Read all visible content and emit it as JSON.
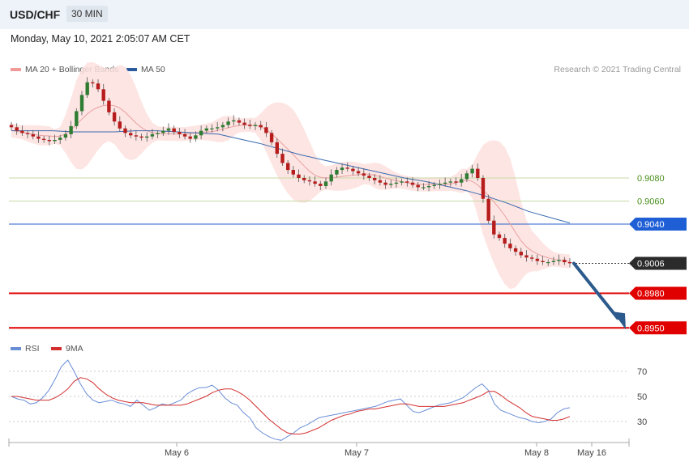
{
  "header": {
    "pair": "USD/CHF",
    "timeframe": "30 MIN"
  },
  "date": "Monday, May 10, 2021 2:05:07 AM CET",
  "legend": {
    "ma20": "MA 20 + Bollinger Bands",
    "ma50": "MA 50",
    "rsi": "RSI",
    "rsi_ma": "9MA"
  },
  "credit": "Research © 2021 Trading Central",
  "colors": {
    "up": "#2e7d32",
    "down": "#b71c1c",
    "band": "#fde0de",
    "ma20": "#e8a0a0",
    "ma50": "#3a6ab0",
    "rsi": "#6a8ed6",
    "rsi_ma": "#d32f2f",
    "level_green": "#c9d9a6",
    "level_blue": "#2a62c8",
    "level_red": "#e00000",
    "current": "#333333"
  },
  "chart_data": [
    {
      "type": "candlestick",
      "title": "USD/CHF 30 MIN",
      "x_labels": [
        "May 6",
        "May 7",
        "May 8",
        "May 16"
      ],
      "levels": [
        {
          "value": 0.908,
          "label": "0.9080",
          "style": "resistance"
        },
        {
          "value": 0.906,
          "label": "0.9060",
          "style": "resistance"
        },
        {
          "value": 0.904,
          "label": "0.9040",
          "style": "pivot"
        },
        {
          "value": 0.9006,
          "label": "0.9006",
          "style": "current"
        },
        {
          "value": 0.898,
          "label": "0.8980",
          "style": "support"
        },
        {
          "value": 0.895,
          "label": "0.8950",
          "style": "support"
        }
      ],
      "projection": {
        "from": 0.9006,
        "to": 0.895,
        "direction": "down"
      },
      "close_approx": [
        0.9124,
        0.9121,
        0.9119,
        0.9118,
        0.9116,
        0.9114,
        0.9113,
        0.9112,
        0.9113,
        0.9115,
        0.9118,
        0.9125,
        0.9138,
        0.9152,
        0.9163,
        0.9162,
        0.9157,
        0.9147,
        0.9137,
        0.9129,
        0.9123,
        0.9119,
        0.9117,
        0.9116,
        0.9115,
        0.9116,
        0.9118,
        0.9119,
        0.9121,
        0.9123,
        0.912,
        0.9118,
        0.9116,
        0.9114,
        0.9117,
        0.9121,
        0.9123,
        0.9123,
        0.9124,
        0.9126,
        0.9129,
        0.913,
        0.9128,
        0.9126,
        0.9125,
        0.9126,
        0.9124,
        0.9119,
        0.9111,
        0.9101,
        0.9093,
        0.9087,
        0.9083,
        0.908,
        0.9078,
        0.9077,
        0.9075,
        0.9073,
        0.9077,
        0.9083,
        0.9087,
        0.9089,
        0.9088,
        0.9086,
        0.9084,
        0.9082,
        0.908,
        0.9078,
        0.9076,
        0.9074,
        0.9075,
        0.9076,
        0.9077,
        0.9076,
        0.9074,
        0.9072,
        0.9072,
        0.9073,
        0.9074,
        0.9075,
        0.9076,
        0.9077,
        0.9076,
        0.9079,
        0.9084,
        0.9088,
        0.908,
        0.9062,
        0.9043,
        0.9031,
        0.9028,
        0.9023,
        0.9019,
        0.9016,
        0.9013,
        0.9011,
        0.901,
        0.9008,
        0.9007,
        0.9007,
        0.9008,
        0.9009,
        0.9007,
        0.9006
      ],
      "ma50_approx": [
        0.9121,
        0.9121,
        0.9121,
        0.912,
        0.912,
        0.912,
        0.9121,
        0.9121,
        0.912,
        0.9119,
        0.9118,
        0.9114,
        0.911,
        0.9105,
        0.91,
        0.9096,
        0.9092,
        0.9088,
        0.9084,
        0.908,
        0.9077,
        0.9073,
        0.9069,
        0.9064,
        0.9058,
        0.9051,
        0.9046,
        0.9041
      ]
    },
    {
      "type": "line",
      "title": "RSI",
      "ylim": [
        10,
        85
      ],
      "yticks": [
        70,
        50,
        30
      ],
      "series": [
        {
          "name": "RSI",
          "values": [
            50,
            48,
            47,
            44,
            45,
            49,
            55,
            64,
            74,
            79,
            70,
            60,
            52,
            47,
            45,
            46,
            47,
            45,
            44,
            42,
            47,
            43,
            39,
            41,
            44,
            43,
            45,
            47,
            52,
            55,
            57,
            57,
            59,
            55,
            49,
            45,
            43,
            37,
            33,
            25,
            21,
            18,
            16,
            15,
            18,
            21,
            25,
            27,
            30,
            33,
            34,
            35,
            36,
            37,
            38,
            39,
            40,
            41,
            42,
            44,
            46,
            47,
            48,
            43,
            38,
            37,
            39,
            41,
            43,
            44,
            45,
            47,
            49,
            53,
            57,
            60,
            55,
            44,
            39,
            37,
            35,
            33,
            32,
            30,
            29,
            30,
            32,
            37,
            40,
            41
          ]
        },
        {
          "name": "9MA",
          "values": [
            50,
            50,
            49,
            48,
            47,
            47,
            47,
            49,
            52,
            56,
            62,
            65,
            64,
            61,
            56,
            52,
            49,
            47,
            46,
            45,
            45,
            45,
            44,
            43,
            43,
            43,
            43,
            43,
            44,
            46,
            48,
            50,
            53,
            55,
            56,
            56,
            54,
            51,
            47,
            42,
            37,
            32,
            28,
            24,
            21,
            20,
            20,
            21,
            23,
            25,
            28,
            31,
            33,
            35,
            36,
            38,
            39,
            40,
            40,
            41,
            42,
            43,
            44,
            44,
            43,
            42,
            42,
            42,
            42,
            42,
            43,
            44,
            45,
            47,
            49,
            51,
            54,
            54,
            51,
            47,
            44,
            41,
            37,
            34,
            33,
            32,
            31,
            31,
            32,
            34
          ]
        }
      ]
    }
  ]
}
